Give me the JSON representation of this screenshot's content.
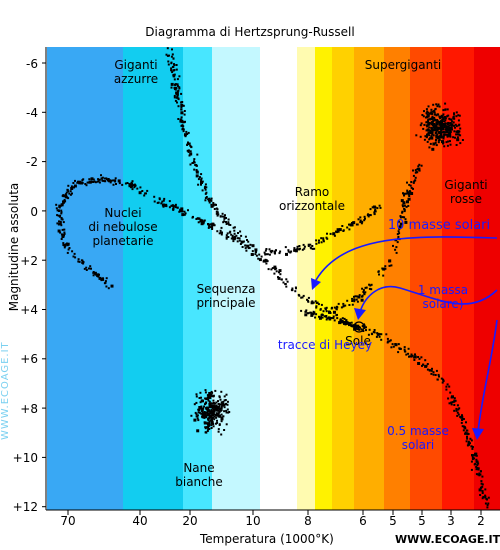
{
  "title": "Diagramma di Hertzsprung-Russell",
  "axis": {
    "ylabel": "Magnitudine assoluta",
    "xlabel": "Temperatura (1000°K)",
    "y_ticks": [
      "-6",
      "-4",
      "-2",
      "0",
      "+2",
      "+4",
      "+6",
      "+8",
      "+10",
      "+12"
    ],
    "x_ticks": [
      "70",
      "40",
      "20",
      "10",
      "8",
      "6",
      "5",
      "5",
      "3",
      "2"
    ]
  },
  "regions": {
    "giganti_azzurre": [
      "Giganti",
      "azzurre"
    ],
    "supergiganti": "Supergiganti",
    "giganti_rosse": [
      "Giganti",
      "rosse"
    ],
    "ramo_orizzontale": [
      "Ramo",
      "orizzontale"
    ],
    "nuclei": [
      "Nuclei",
      "di nebulose",
      "planetarie"
    ],
    "sequenza": [
      "Sequenza",
      "principale"
    ],
    "nane_bianche": [
      "Nane",
      "bianche"
    ],
    "sole": "Sole"
  },
  "tracks": {
    "m10": "10 masse solari",
    "m1": [
      "1 massa",
      "solare)"
    ],
    "heyey": "tracce di Heyey",
    "m05": [
      "0.5 masse",
      "solari"
    ]
  },
  "credits": {
    "footer": "WWW.ECOAGE.IT",
    "watermark": "WWW.ECOAGE.IT"
  },
  "colors": {
    "bands": [
      "#39a8f4",
      "#12cdf0",
      "#48e6ff",
      "#c4f8ff",
      "#ffffff",
      "#fffbb0",
      "#fff200",
      "#ffd100",
      "#ffae00",
      "#ff8000",
      "#ff4a00",
      "#ff1800",
      "#ee0000"
    ],
    "track": "#1a1aff",
    "stars": "#000000"
  }
}
